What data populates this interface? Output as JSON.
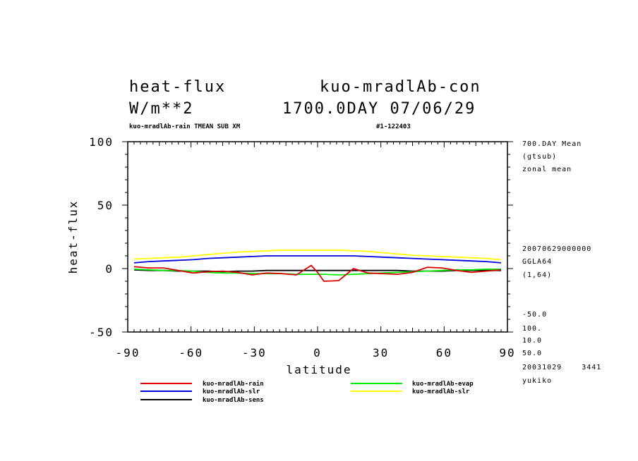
{
  "header": {
    "title_left": "heat-flux",
    "title_right": "kuo-mradlAb-con",
    "units": "W/m**2",
    "date_line": "1700.0DAY 07/06/29",
    "subtitle_left": "kuo-mradlAb-rain TMEAN SUB XM",
    "subtitle_right": "#1-122403"
  },
  "side_info": {
    "lines": [
      "700.DAY Mean",
      "(gtsub)",
      "zonal mean"
    ],
    "meta": [
      "20070629000000",
      "GGLA64",
      "(1,64)"
    ],
    "params": [
      "-50.0",
      "100.",
      "10.0",
      "50.0"
    ],
    "footer": [
      "20031029    3441",
      "yukiko"
    ]
  },
  "legend": [
    {
      "label": "kuo-mradlAb-rain",
      "color": "#dd0000"
    },
    {
      "label": "kuo-mradlAb-evap",
      "color": "#00ee00"
    },
    {
      "label": "kuo-mradlAb-slr",
      "color": "#0000dd"
    },
    {
      "label": "kuo-mradlAb-slr",
      "color": "#ffff00"
    },
    {
      "label": "kuo-mradlAb-sens",
      "color": "#000000"
    }
  ],
  "chart_data": {
    "type": "line",
    "xlabel": "latitude",
    "ylabel": "heat-flux",
    "xlim": [
      -90,
      90
    ],
    "ylim": [
      -50,
      100
    ],
    "xticks": [
      -90,
      -60,
      -30,
      0,
      30,
      60,
      90
    ],
    "yticks": [
      100,
      50,
      0,
      -50
    ],
    "x": [
      -87,
      -80,
      -73,
      -66,
      -59,
      -52,
      -45,
      -38,
      -31,
      -24,
      -17,
      -10,
      -3,
      0,
      3,
      10,
      17,
      24,
      31,
      38,
      45,
      52,
      59,
      66,
      73,
      80,
      87
    ],
    "series": [
      {
        "name": "kuo-mradlAb-rain",
        "color": "#dd0000",
        "values": [
          1.5,
          0.5,
          0.5,
          -1.5,
          -3.5,
          -2.5,
          -2.0,
          -3.0,
          -5.0,
          -3.5,
          -4.0,
          -5.0,
          2.5,
          -3.0,
          -10.0,
          -9.5,
          0.0,
          -3.5,
          -4.0,
          -4.5,
          -3.0,
          1.0,
          0.5,
          -1.5,
          -3.0,
          -2.0,
          -1.0
        ]
      },
      {
        "name": "kuo-mradlAb-evap",
        "color": "#00ee00",
        "values": [
          -0.5,
          -1.0,
          -1.5,
          -1.5,
          -2.0,
          -3.0,
          -3.5,
          -3.5,
          -4.0,
          -4.0,
          -4.0,
          -4.5,
          -4.5,
          -4.5,
          -4.5,
          -5.0,
          -4.5,
          -4.0,
          -3.5,
          -3.0,
          -2.5,
          -2.0,
          -1.5,
          -1.0,
          -1.0,
          -0.5,
          -0.5
        ]
      },
      {
        "name": "kuo-mradlAb-slr",
        "color": "#0000dd",
        "values": [
          4.5,
          5.5,
          6.0,
          6.5,
          7.0,
          8.0,
          8.5,
          9.0,
          9.5,
          10.0,
          10.0,
          10.0,
          10.0,
          10.0,
          10.0,
          10.0,
          10.0,
          9.5,
          9.0,
          8.5,
          8.0,
          7.5,
          7.0,
          6.5,
          6.0,
          5.5,
          4.5
        ]
      },
      {
        "name": "kuo-mradlAb-slr",
        "color": "#ffff00",
        "values": [
          7.5,
          8.0,
          8.5,
          9.0,
          10.0,
          11.0,
          12.0,
          13.0,
          13.5,
          14.0,
          14.5,
          14.5,
          14.5,
          14.5,
          14.5,
          14.5,
          14.0,
          13.5,
          12.5,
          11.5,
          10.5,
          10.0,
          9.5,
          9.0,
          8.5,
          8.0,
          7.0
        ]
      },
      {
        "name": "kuo-mradlAb-sens",
        "color": "#000000",
        "values": [
          -1.0,
          -1.5,
          -1.5,
          -2.0,
          -2.0,
          -2.0,
          -2.5,
          -2.0,
          -2.0,
          -1.5,
          -1.5,
          -1.5,
          -1.5,
          -1.5,
          -1.5,
          -1.5,
          -1.5,
          -1.5,
          -1.5,
          -1.5,
          -2.0,
          -2.0,
          -2.0,
          -1.5,
          -1.5,
          -1.5,
          -1.5
        ]
      }
    ]
  }
}
